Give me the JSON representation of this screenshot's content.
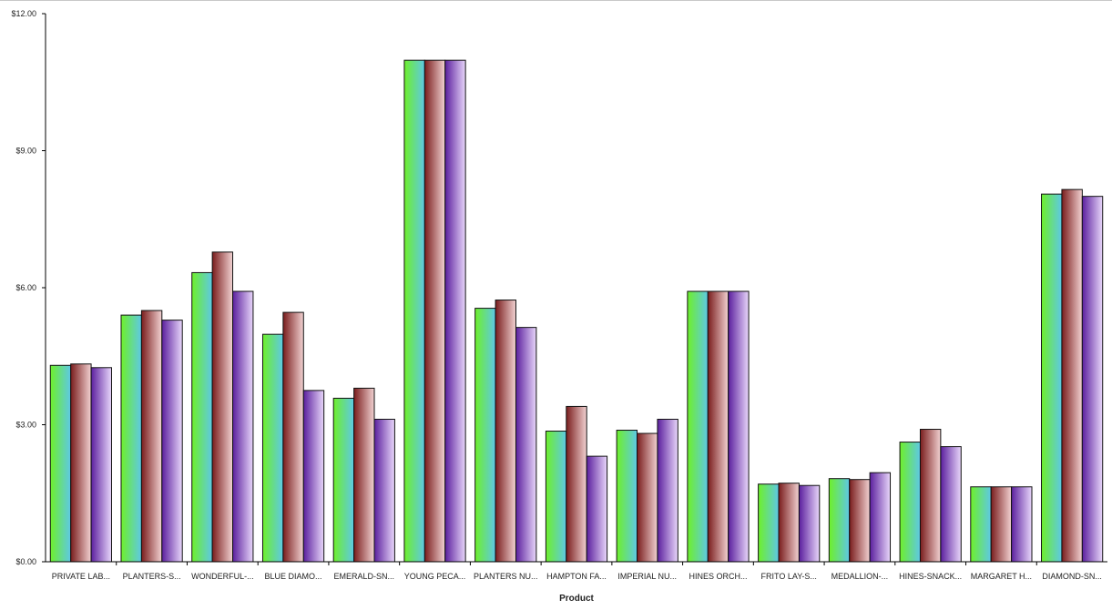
{
  "chart_data": {
    "type": "bar",
    "title": "",
    "xlabel": "Product",
    "ylabel": "",
    "ylim": [
      0,
      12
    ],
    "yticks": [
      0,
      3,
      6,
      9,
      12
    ],
    "ytick_labels": [
      "$0.00",
      "$3.00",
      "$6.00",
      "$9.00",
      "$12.00"
    ],
    "grid": false,
    "legend": "none",
    "categories": [
      "PRIVATE LAB...",
      "PLANTERS-S...",
      "WONDERFUL-...",
      "BLUE DIAMO...",
      "EMERALD-SN...",
      "YOUNG PECA...",
      "PLANTERS NU...",
      "HAMPTON FA...",
      "IMPERIAL NU...",
      "HINES ORCH...",
      "FRITO LAY-S...",
      "MEDALLION-...",
      "HINES-SNACK...",
      "MARGARET H...",
      "DIAMOND-SN..."
    ],
    "series": [
      {
        "values": [
          4.3,
          5.4,
          6.33,
          4.98,
          3.58,
          10.98,
          5.55,
          2.86,
          2.88,
          5.92,
          1.7,
          1.82,
          2.62,
          1.64,
          8.05
        ],
        "colors": [
          "#6ef02a",
          "#5ec8e6"
        ]
      },
      {
        "values": [
          4.33,
          5.5,
          6.78,
          5.46,
          3.8,
          10.98,
          5.73,
          3.4,
          2.81,
          5.92,
          1.72,
          1.8,
          2.9,
          1.64,
          8.15
        ],
        "colors": [
          "#7a1d1d",
          "#f2d2d2"
        ]
      },
      {
        "values": [
          4.25,
          5.29,
          5.92,
          3.75,
          3.12,
          10.98,
          5.13,
          2.31,
          3.12,
          5.92,
          1.67,
          1.95,
          2.52,
          1.64,
          8.0
        ],
        "colors": [
          "#5b1f9e",
          "#e8d6fa"
        ]
      }
    ]
  }
}
